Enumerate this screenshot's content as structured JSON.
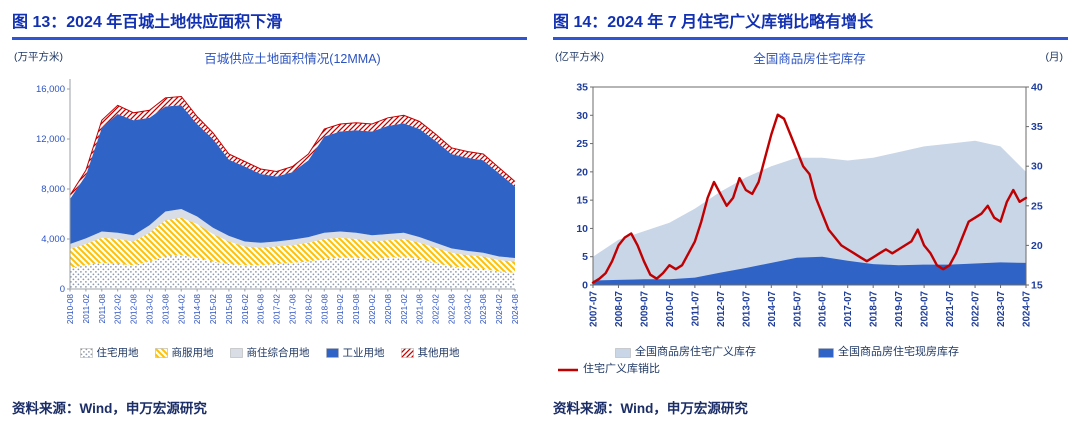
{
  "page": {
    "background": "#FFFFFF",
    "accent_blue": "#2F55D4",
    "title_color": "#1130B2",
    "axis_blue": "#2D53C0",
    "text_navy": "#1F3864"
  },
  "panels": [
    {
      "title": "图 13：2024 年百城土地供应面积下滑",
      "source": "资料来源：Wind，申万宏源研究"
    },
    {
      "title": "图 14：2024 年 7 月住宅广义库销比略有增长",
      "source": "资料来源：Wind，申万宏源研究"
    }
  ],
  "chart_data": [
    {
      "type": "area",
      "stacked": true,
      "title": "百城供应土地面积情况(12MMA)",
      "unit_left": "(万平方米)",
      "ylim": [
        0,
        16000
      ],
      "yticks": [
        0,
        4000,
        8000,
        12000,
        16000
      ],
      "ytick_labels": [
        "0",
        "4,000",
        "8,000",
        "12,000",
        "16,000"
      ],
      "grid": false,
      "legend_position": "bottom",
      "categories": [
        "2010-08",
        "2011-02",
        "2011-08",
        "2012-02",
        "2012-08",
        "2013-02",
        "2013-08",
        "2014-02",
        "2014-08",
        "2015-02",
        "2015-08",
        "2016-02",
        "2016-08",
        "2017-02",
        "2017-08",
        "2018-02",
        "2018-08",
        "2019-02",
        "2019-08",
        "2020-02",
        "2020-08",
        "2021-02",
        "2021-08",
        "2022-02",
        "2022-08",
        "2023-02",
        "2023-08",
        "2024-02",
        "2024-08"
      ],
      "series": [
        {
          "name": "住宅用地",
          "style": "dots",
          "color": "#8E99AF",
          "values": [
            1700,
            1900,
            2100,
            2000,
            1900,
            2200,
            2600,
            2700,
            2500,
            2200,
            2000,
            1900,
            1900,
            2000,
            2100,
            2200,
            2400,
            2500,
            2500,
            2400,
            2500,
            2600,
            2400,
            2100,
            1800,
            1700,
            1600,
            1400,
            1300
          ]
        },
        {
          "name": "商服用地",
          "style": "hatch-back",
          "color": "#FFC000",
          "values": [
            1500,
            1700,
            2000,
            2000,
            1900,
            2300,
            2900,
            3000,
            2700,
            2200,
            1800,
            1500,
            1400,
            1400,
            1400,
            1500,
            1600,
            1600,
            1500,
            1400,
            1400,
            1400,
            1300,
            1200,
            1100,
            1000,
            1000,
            900,
            900
          ]
        },
        {
          "name": "商住综合用地",
          "style": "solid",
          "color": "#D8DDE6",
          "values": [
            400,
            450,
            500,
            500,
            500,
            600,
            700,
            700,
            600,
            500,
            450,
            400,
            400,
            400,
            450,
            450,
            500,
            500,
            500,
            500,
            500,
            500,
            450,
            400,
            350,
            350,
            300,
            300,
            280
          ]
        },
        {
          "name": "工业用地",
          "style": "solid",
          "color": "#2F63C6",
          "values": [
            3600,
            5050,
            8300,
            9500,
            9200,
            8600,
            8400,
            8300,
            7400,
            7100,
            6100,
            6000,
            5500,
            5200,
            5400,
            6150,
            7700,
            8000,
            8200,
            8300,
            8650,
            8750,
            8650,
            8150,
            7550,
            7450,
            7400,
            6650,
            5720
          ]
        },
        {
          "name": "其他用地",
          "style": "hatch-fwd",
          "color": "#C00000",
          "values": [
            300,
            400,
            600,
            700,
            600,
            600,
            700,
            700,
            600,
            500,
            450,
            400,
            400,
            400,
            450,
            500,
            600,
            600,
            600,
            600,
            650,
            650,
            600,
            550,
            500,
            500,
            500,
            450,
            400
          ]
        }
      ]
    },
    {
      "type": "mixed",
      "title": "全国商品房住宅库存",
      "unit_left": "(亿平方米)",
      "unit_right": "(月)",
      "ylim_left": [
        0,
        35
      ],
      "yticks_left": [
        0,
        5,
        10,
        15,
        20,
        25,
        30,
        35
      ],
      "ylim_right": [
        15,
        40
      ],
      "yticks_right": [
        15,
        20,
        25,
        30,
        35,
        40
      ],
      "grid": false,
      "frame": true,
      "legend_position": "bottom",
      "categories": [
        "2007-07",
        "2008-07",
        "2009-07",
        "2010-07",
        "2011-07",
        "2012-07",
        "2013-07",
        "2014-07",
        "2015-07",
        "2016-07",
        "2017-07",
        "2018-07",
        "2019-07",
        "2020-07",
        "2021-07",
        "2022-07",
        "2023-07",
        "2024-07"
      ],
      "area_series": [
        {
          "name": "全国商品房住宅广义库存",
          "color": "#C9D6E8",
          "axis": "left",
          "values": [
            5,
            8,
            9.5,
            11,
            13.5,
            16.5,
            19,
            21,
            22.5,
            22.5,
            22,
            22.5,
            23.5,
            24.5,
            25,
            25.5,
            24.5,
            20
          ]
        },
        {
          "name": "全国商品房住宅现房库存",
          "color": "#2F63C6",
          "axis": "left",
          "values": [
            0.8,
            0.9,
            1.0,
            1.0,
            1.3,
            2.2,
            3.0,
            3.9,
            4.8,
            5.0,
            4.3,
            3.7,
            3.5,
            3.6,
            3.6,
            3.8,
            4.0,
            3.9
          ]
        }
      ],
      "line_series": {
        "name": "住宅广义库销比",
        "color": "#C00000",
        "axis": "right",
        "x_step_per_point": 0.25,
        "values": [
          15.3,
          15.8,
          16.5,
          18.0,
          20.0,
          21.0,
          21.5,
          20.0,
          18.0,
          16.3,
          15.8,
          16.5,
          17.5,
          17.0,
          17.5,
          19.0,
          20.5,
          23.0,
          26.0,
          28.0,
          26.5,
          25.0,
          26.0,
          28.5,
          27.0,
          26.5,
          28.0,
          31.0,
          34.0,
          36.5,
          36.0,
          34.0,
          32.0,
          30.0,
          29.0,
          26.0,
          24.0,
          22.0,
          21.0,
          20.0,
          19.5,
          19.0,
          18.5,
          18.0,
          18.5,
          19.0,
          19.5,
          19.0,
          19.5,
          20.0,
          20.5,
          22.0,
          20.0,
          19.0,
          17.5,
          17.0,
          17.5,
          19.0,
          21.0,
          23.0,
          23.5,
          24.0,
          25.0,
          23.5,
          23.0,
          25.5,
          27.0,
          25.5,
          26.0
        ]
      }
    }
  ]
}
